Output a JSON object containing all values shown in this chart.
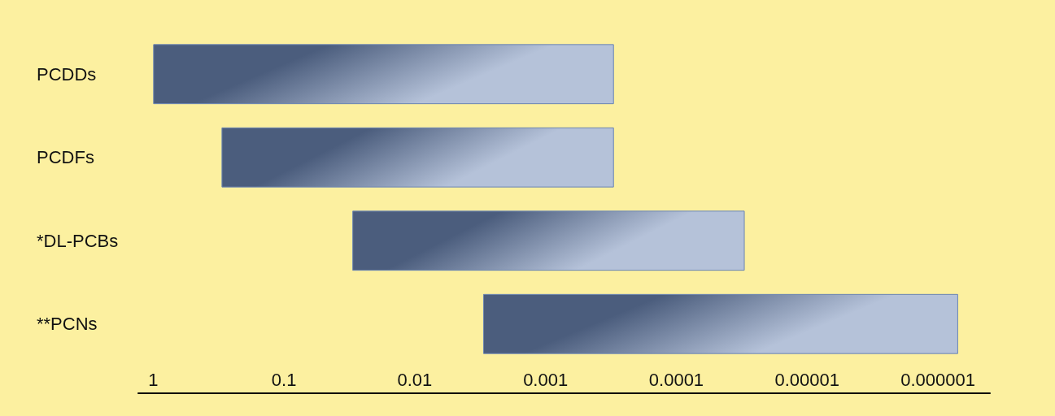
{
  "chart_data": {
    "type": "bar",
    "orientation": "horizontal",
    "categories": [
      "PCDDs",
      "PCDFs",
      "*DL-PCBs",
      "**PCNs"
    ],
    "base": [
      0.0003,
      0.0003,
      3e-05,
      7e-07
    ],
    "values": [
      0.9997,
      0.2997,
      0.02997,
      0.0029993
    ],
    "color": "#6b85b3",
    "log": "x",
    "xlim": [
      1.3,
      4e-07
    ],
    "xticks": [
      1,
      0.1,
      0.01,
      0.001,
      0.0001,
      {
        "value": 1e-05,
        "label": "0.00001"
      },
      {
        "value": 1e-06,
        "label": "0.000001"
      }
    ],
    "grid": false
  }
}
